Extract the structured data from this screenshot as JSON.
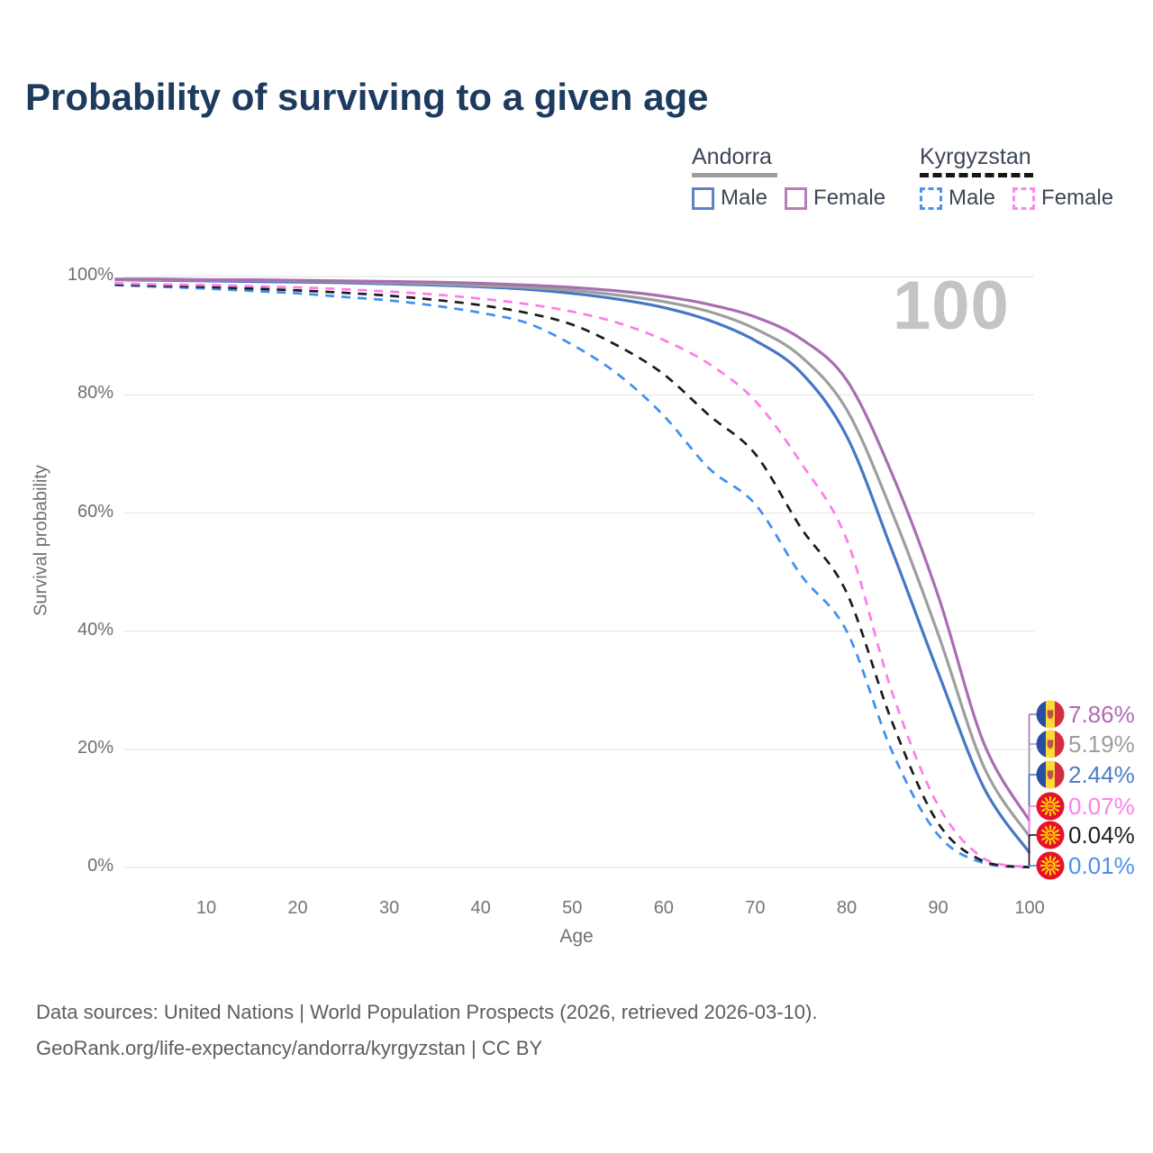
{
  "title": "Probability of surviving to a given age",
  "watermark_age_label": "100",
  "legend": {
    "groups": [
      {
        "name": "Andorra",
        "line_style": "solid",
        "line_color": "#9e9e9e",
        "items": [
          {
            "label": "Male",
            "color": "#5b84c6"
          },
          {
            "label": "Female",
            "color": "#b57fb5"
          }
        ]
      },
      {
        "name": "Kyrgyzstan",
        "line_style": "dashed",
        "line_color": "#161616",
        "items": [
          {
            "label": "Male",
            "color": "#4a90f5"
          },
          {
            "label": "Female",
            "color": "#ff87ea"
          }
        ]
      }
    ]
  },
  "axes": {
    "y_label": "Survival probability",
    "x_label": "Age",
    "y_tick_labels": [
      "100%",
      "80%",
      "60%",
      "40%",
      "20%",
      "0%"
    ],
    "y_tick_values": [
      100,
      80,
      60,
      40,
      20,
      0
    ],
    "x_tick_values": [
      10,
      20,
      30,
      40,
      50,
      60,
      70,
      80,
      90,
      100
    ]
  },
  "end_labels": [
    {
      "series": "andorra-female",
      "text": "7.86%",
      "color": "#b16ab4",
      "flag": "andorra-flag-icon"
    },
    {
      "series": "andorra-all",
      "text": "5.19%",
      "color": "#9e9e9e",
      "flag": "andorra-flag-icon"
    },
    {
      "series": "andorra-male",
      "text": "2.44%",
      "color": "#4d7cc9",
      "flag": "andorra-flag-icon"
    },
    {
      "series": "kyrgyzstan-female",
      "text": "0.07%",
      "color": "#ff80e9",
      "flag": "kyrgyzstan-flag-icon"
    },
    {
      "series": "kyrgyzstan-all",
      "text": "0.04%",
      "color": "#1f1f1f",
      "flag": "kyrgyzstan-flag-icon"
    },
    {
      "series": "kyrgyzstan-male",
      "text": "0.01%",
      "color": "#4a90f2",
      "flag": "kyrgyzstan-flag-icon"
    }
  ],
  "footer": {
    "line1": "Data sources: United Nations | World Population Prospects (2026, retrieved 2026-03-10).",
    "line2": "GeoRank.org/life-expectancy/andorra/kyrgyzstan | CC BY"
  },
  "palette": {
    "title_text": "#1d3a5f",
    "grid_line": "#e2e2e2",
    "axis_text": "#6f6f6f",
    "watermark_text": "#c4c4c4",
    "footer_text": "#5d5d5d",
    "andorra_flag": {
      "blue": "#2b4ea3",
      "yellow": "#fed939",
      "red": "#d32e3e"
    },
    "kyrgyzstan_flag": {
      "red": "#e8112d",
      "yellow": "#fed500"
    }
  },
  "chart_data": {
    "type": "line",
    "title": "Probability of surviving to a given age",
    "xlabel": "Age",
    "ylabel": "Survival probability",
    "xlim": [
      0,
      100
    ],
    "ylim": [
      0,
      100
    ],
    "grid": true,
    "x": [
      0,
      5,
      10,
      15,
      20,
      25,
      30,
      35,
      40,
      45,
      50,
      55,
      60,
      65,
      70,
      75,
      80,
      85,
      90,
      95,
      100
    ],
    "series": [
      {
        "id": "andorra-female",
        "country": "Andorra",
        "group": "Female",
        "style": "solid",
        "color": "#a76fb0",
        "end_value_pct": 7.86,
        "values": [
          99.6,
          99.6,
          99.5,
          99.5,
          99.4,
          99.3,
          99.2,
          99.1,
          98.9,
          98.6,
          98.2,
          97.6,
          96.7,
          95.3,
          93.2,
          89.5,
          82.5,
          66.5,
          46,
          21,
          7.86
        ]
      },
      {
        "id": "andorra-all",
        "country": "Andorra",
        "group": "All",
        "style": "solid",
        "color": "#9e9e9e",
        "end_value_pct": 5.19,
        "values": [
          99.5,
          99.5,
          99.4,
          99.4,
          99.3,
          99.2,
          99.0,
          98.8,
          98.5,
          98.2,
          97.7,
          96.9,
          95.8,
          94.1,
          91.2,
          86.5,
          77.5,
          60,
          39.5,
          17,
          5.19
        ]
      },
      {
        "id": "andorra-male",
        "country": "Andorra",
        "group": "Male",
        "style": "solid",
        "color": "#4677c4",
        "end_value_pct": 2.44,
        "values": [
          99.5,
          99.4,
          99.3,
          99.2,
          99.1,
          99.0,
          98.8,
          98.6,
          98.3,
          97.9,
          97.2,
          96.2,
          94.8,
          92.6,
          89.2,
          83.8,
          73,
          53.5,
          33,
          13.5,
          2.44
        ]
      },
      {
        "id": "kyrgyzstan-female",
        "country": "Kyrgyzstan",
        "group": "Female",
        "style": "dashed",
        "color": "#ff7be9",
        "end_value_pct": 0.07,
        "values": [
          98.9,
          98.7,
          98.6,
          98.4,
          98.2,
          97.9,
          97.5,
          97.0,
          96.3,
          95.4,
          94.1,
          92.2,
          89.3,
          85.2,
          79.0,
          68.5,
          55.5,
          29.5,
          10.5,
          1.5,
          0.07
        ]
      },
      {
        "id": "kyrgyzstan-all",
        "country": "Kyrgyzstan",
        "group": "All",
        "style": "dashed",
        "color": "#1b1b1b",
        "end_value_pct": 0.04,
        "values": [
          98.7,
          98.5,
          98.3,
          98.0,
          97.7,
          97.3,
          96.8,
          96.1,
          95.2,
          93.9,
          91.9,
          88.3,
          83.5,
          76.5,
          70.0,
          57.5,
          46.5,
          24.5,
          7.5,
          1.0,
          0.04
        ]
      },
      {
        "id": "kyrgyzstan-male",
        "country": "Kyrgyzstan",
        "group": "Male",
        "style": "dashed",
        "color": "#3f8ef2",
        "end_value_pct": 0.01,
        "values": [
          98.6,
          98.3,
          98.0,
          97.6,
          97.2,
          96.6,
          96.0,
          95.1,
          93.9,
          92.2,
          88.5,
          83.5,
          76.5,
          67.5,
          61.5,
          49.5,
          40.0,
          19.5,
          5.5,
          0.7,
          0.01
        ]
      }
    ]
  }
}
